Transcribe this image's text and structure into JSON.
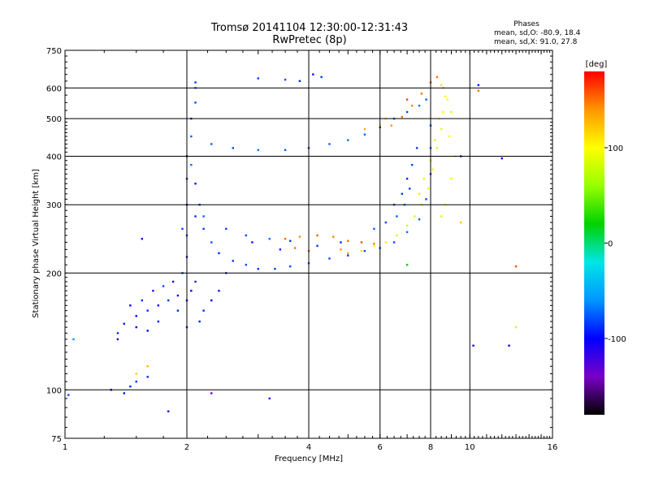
{
  "chart_data": {
    "type": "scatter",
    "title": "Tromsø 20141104 12:30:00-12:31:43",
    "subtitle": "RwPretec (8p)",
    "xlabel": "Frequency [MHz]",
    "ylabel": "Stationary phase Virtual Height [km]",
    "x_scale": "log",
    "y_scale": "log",
    "xlim": [
      1,
      16
    ],
    "ylim": [
      75,
      750
    ],
    "x_ticks": [
      1,
      2,
      4,
      6,
      8,
      10,
      16
    ],
    "x_tick_labels": [
      "1",
      "2",
      "4",
      "6",
      "8",
      "10",
      "16"
    ],
    "y_ticks": [
      75,
      100,
      200,
      300,
      400,
      500,
      600,
      750
    ],
    "y_tick_labels": [
      "75",
      "100",
      "200",
      "300",
      "400",
      "500",
      "600",
      "750"
    ],
    "grid": true,
    "phase_info": {
      "heading": "Phases",
      "line_o": "mean, sd,O: -80.9, 18.4",
      "line_x": "mean, sd,X:  91.0, 27.8"
    },
    "colorbar": {
      "label": "[deg]",
      "tick_values": [
        100,
        0,
        -100
      ],
      "tick_labels": [
        "100",
        "0",
        "-100"
      ],
      "range": [
        -180,
        180
      ],
      "colors": [
        "#000000",
        "#7a00c8",
        "#0000ff",
        "#0096ff",
        "#00e6e6",
        "#00d200",
        "#96ff00",
        "#ffff00",
        "#ff9600",
        "#ff0000"
      ]
    },
    "series": [
      {
        "mode": "O",
        "points": [
          [
            1.4,
            148,
            -95
          ],
          [
            1.5,
            155,
            -100
          ],
          [
            1.6,
            160,
            -90
          ],
          [
            1.7,
            165,
            -105
          ],
          [
            1.8,
            170,
            -85
          ],
          [
            1.9,
            175,
            -95
          ],
          [
            1.45,
            165,
            -100
          ],
          [
            1.55,
            170,
            -90
          ],
          [
            1.65,
            180,
            -95
          ],
          [
            1.75,
            185,
            -80
          ],
          [
            1.85,
            190,
            -100
          ],
          [
            1.35,
            140,
            -90
          ],
          [
            1.5,
            145,
            -105
          ],
          [
            1.7,
            150,
            -95
          ],
          [
            1.9,
            160,
            -90
          ],
          [
            1.6,
            142,
            -100
          ],
          [
            1.95,
            200,
            -85
          ],
          [
            2.0,
            220,
            -90
          ],
          [
            2.0,
            250,
            -80
          ],
          [
            2.0,
            300,
            -95
          ],
          [
            2.0,
            350,
            -85
          ],
          [
            2.0,
            400,
            -90
          ],
          [
            2.05,
            450,
            -75
          ],
          [
            2.05,
            500,
            -85
          ],
          [
            2.1,
            550,
            -80
          ],
          [
            2.1,
            600,
            -70
          ],
          [
            2.1,
            620,
            -85
          ],
          [
            2.0,
            170,
            -95
          ],
          [
            2.05,
            180,
            -100
          ],
          [
            2.1,
            190,
            -90
          ],
          [
            1.95,
            260,
            -80
          ],
          [
            2.1,
            280,
            -90
          ],
          [
            2.15,
            300,
            -85
          ],
          [
            2.1,
            340,
            -95
          ],
          [
            2.05,
            380,
            -70
          ],
          [
            2.2,
            260,
            -85
          ],
          [
            2.3,
            240,
            -80
          ],
          [
            2.4,
            225,
            -90
          ],
          [
            2.6,
            215,
            -85
          ],
          [
            2.8,
            210,
            -80
          ],
          [
            3.0,
            205,
            -90
          ],
          [
            3.3,
            205,
            -85
          ],
          [
            3.6,
            208,
            -80
          ],
          [
            4.0,
            212,
            -75
          ],
          [
            4.5,
            218,
            -80
          ],
          [
            5.0,
            222,
            -85
          ],
          [
            5.5,
            228,
            -80
          ],
          [
            6.0,
            232,
            -75
          ],
          [
            6.5,
            240,
            -80
          ],
          [
            7.0,
            255,
            -70
          ],
          [
            7.5,
            275,
            -75
          ],
          [
            7.8,
            310,
            -80
          ],
          [
            8.0,
            360,
            -85
          ],
          [
            8.0,
            420,
            -75
          ],
          [
            8.0,
            480,
            -80
          ],
          [
            2.2,
            280,
            -75
          ],
          [
            2.5,
            260,
            -85
          ],
          [
            2.8,
            250,
            -80
          ],
          [
            3.2,
            245,
            -70
          ],
          [
            3.6,
            242,
            -85
          ],
          [
            2.3,
            430,
            -75
          ],
          [
            2.6,
            420,
            -80
          ],
          [
            3.0,
            415,
            -70
          ],
          [
            3.5,
            415,
            -75
          ],
          [
            4.0,
            420,
            -80
          ],
          [
            4.5,
            430,
            -75
          ],
          [
            5.0,
            440,
            -70
          ],
          [
            5.5,
            455,
            -75
          ],
          [
            6.0,
            475,
            -80
          ],
          [
            6.5,
            500,
            -75
          ],
          [
            7.0,
            520,
            -80
          ],
          [
            7.5,
            540,
            -70
          ],
          [
            7.8,
            560,
            -75
          ],
          [
            6.5,
            300,
            -80
          ],
          [
            6.8,
            320,
            -85
          ],
          [
            7.0,
            350,
            -90
          ],
          [
            7.2,
            380,
            -80
          ],
          [
            7.4,
            420,
            -85
          ],
          [
            6.6,
            280,
            -75
          ],
          [
            6.9,
            300,
            -70
          ],
          [
            7.1,
            330,
            -85
          ],
          [
            6.2,
            270,
            -80
          ],
          [
            5.8,
            260,
            -75
          ],
          [
            3.0,
            635,
            -85
          ],
          [
            3.5,
            630,
            -80
          ],
          [
            3.8,
            625,
            -90
          ],
          [
            4.3,
            640,
            -85
          ],
          [
            4.1,
            650,
            -95
          ],
          [
            1.3,
            100,
            -100
          ],
          [
            1.4,
            98,
            -95
          ],
          [
            1.45,
            102,
            -90
          ],
          [
            1.5,
            105,
            -85
          ],
          [
            1.6,
            108,
            -90
          ],
          [
            1.02,
            97,
            -80
          ],
          [
            1.05,
            135,
            -60
          ],
          [
            1.35,
            135,
            -100
          ],
          [
            1.55,
            245,
            -110
          ],
          [
            9.5,
            400,
            -90
          ],
          [
            10.2,
            130,
            -110
          ],
          [
            10.5,
            610,
            -110
          ],
          [
            12.5,
            130,
            -100
          ],
          [
            2.5,
            200,
            -90
          ],
          [
            2.9,
            240,
            -95
          ],
          [
            3.4,
            230,
            -90
          ],
          [
            4.2,
            235,
            -85
          ],
          [
            4.8,
            240,
            -90
          ],
          [
            2.15,
            150,
            -95
          ],
          [
            2.2,
            160,
            -90
          ],
          [
            2.3,
            170,
            -100
          ],
          [
            2.4,
            180,
            -95
          ],
          [
            2.0,
            145,
            -90
          ],
          [
            3.2,
            95,
            -120
          ],
          [
            1.8,
            88,
            -110
          ],
          [
            2.3,
            98,
            -130
          ],
          [
            12.0,
            395,
            -100
          ]
        ]
      },
      {
        "mode": "X",
        "points": [
          [
            3.5,
            245,
            150
          ],
          [
            3.8,
            248,
            140
          ],
          [
            4.2,
            250,
            155
          ],
          [
            4.6,
            248,
            145
          ],
          [
            5.0,
            242,
            150
          ],
          [
            5.4,
            240,
            160
          ],
          [
            5.8,
            238,
            145
          ],
          [
            4.0,
            228,
            155
          ],
          [
            3.7,
            232,
            150
          ],
          [
            4.8,
            230,
            140
          ],
          [
            5.0,
            225,
            130
          ],
          [
            5.4,
            228,
            110
          ],
          [
            5.8,
            235,
            95
          ],
          [
            6.2,
            240,
            90
          ],
          [
            6.6,
            250,
            85
          ],
          [
            7.0,
            265,
            80
          ],
          [
            7.3,
            280,
            85
          ],
          [
            7.6,
            300,
            90
          ],
          [
            7.9,
            330,
            95
          ],
          [
            8.1,
            370,
            90
          ],
          [
            8.3,
            420,
            85
          ],
          [
            8.5,
            470,
            90
          ],
          [
            8.6,
            520,
            95
          ],
          [
            8.7,
            570,
            100
          ],
          [
            8.5,
            610,
            110
          ],
          [
            7.5,
            320,
            85
          ],
          [
            7.7,
            350,
            90
          ],
          [
            8.0,
            390,
            80
          ],
          [
            8.2,
            440,
            85
          ],
          [
            8.4,
            500,
            90
          ],
          [
            6.4,
            480,
            140
          ],
          [
            6.8,
            505,
            150
          ],
          [
            7.2,
            540,
            145
          ],
          [
            7.0,
            560,
            160
          ],
          [
            7.6,
            580,
            150
          ],
          [
            8.0,
            620,
            160
          ],
          [
            8.3,
            640,
            150
          ],
          [
            8.6,
            600,
            120
          ],
          [
            8.8,
            560,
            100
          ],
          [
            9.0,
            520,
            90
          ],
          [
            8.9,
            450,
            95
          ],
          [
            9.2,
            400,
            90
          ],
          [
            9.0,
            350,
            100
          ],
          [
            8.7,
            300,
            95
          ],
          [
            8.5,
            280,
            85
          ],
          [
            9.5,
            270,
            120
          ],
          [
            10.5,
            590,
            150
          ],
          [
            13.0,
            208,
            160
          ],
          [
            1.6,
            115,
            130
          ],
          [
            1.5,
            110,
            120
          ],
          [
            7.0,
            210,
            20
          ],
          [
            6.0,
            480,
            110
          ],
          [
            5.5,
            470,
            130
          ],
          [
            6.2,
            500,
            120
          ],
          [
            13.0,
            145,
            80
          ]
        ]
      }
    ]
  }
}
